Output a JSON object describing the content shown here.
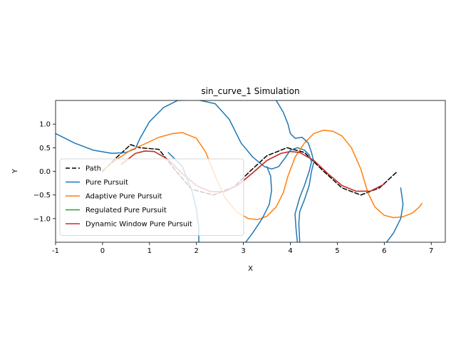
{
  "chart_data": {
    "type": "line",
    "title": "sin_curve_1 Simulation",
    "xlabel": "X",
    "ylabel": "Y",
    "xlim": [
      -1,
      7.3
    ],
    "ylim": [
      -1.5,
      1.5
    ],
    "xticks": [
      "-1",
      "0",
      "1",
      "2",
      "3",
      "4",
      "5",
      "6",
      "7"
    ],
    "yticks": [
      "-1.0",
      "-0.5",
      "0.0",
      "0.5",
      "1.0"
    ],
    "grid": false,
    "legend_position": "lower-left",
    "series": [
      {
        "name": "Path",
        "color": "#000000",
        "dash": "dashed",
        "points": [
          [
            0,
            0
          ],
          [
            0.3,
            0.296
          ],
          [
            0.6,
            0.565
          ],
          [
            0.785,
            0.5
          ],
          [
            1.2,
            0.466
          ],
          [
            1.57,
            0
          ],
          [
            1.9,
            -0.38
          ],
          [
            2.36,
            -0.5
          ],
          [
            2.8,
            -0.33
          ],
          [
            3.14,
            0
          ],
          [
            3.5,
            0.33
          ],
          [
            3.93,
            0.5
          ],
          [
            4.3,
            0.4
          ],
          [
            4.71,
            0
          ],
          [
            5.1,
            -0.35
          ],
          [
            5.5,
            -0.5
          ],
          [
            5.9,
            -0.35
          ],
          [
            6.28,
            0
          ]
        ]
      },
      {
        "name": "Pure Pursuit",
        "color": "#1f77b4",
        "dash": "solid",
        "points": [
          [
            -1,
            0.8
          ],
          [
            -0.6,
            0.6
          ],
          [
            -0.2,
            0.45
          ],
          [
            0.2,
            0.38
          ],
          [
            0.5,
            0.4
          ],
          [
            0.7,
            0.48
          ],
          [
            0.8,
            0.7
          ],
          [
            1.0,
            1.05
          ],
          [
            1.3,
            1.35
          ],
          [
            1.6,
            1.5
          ],
          [
            2.0,
            1.52
          ],
          [
            2.4,
            1.43
          ],
          [
            2.7,
            1.1
          ],
          [
            2.95,
            0.6
          ],
          [
            3.2,
            0.3
          ],
          [
            3.45,
            0.1
          ],
          [
            3.6,
            0.05
          ],
          [
            3.75,
            0.1
          ],
          [
            3.9,
            0.3
          ],
          [
            4.0,
            0.45
          ],
          [
            4.15,
            0.5
          ],
          [
            4.3,
            0.45
          ],
          [
            4.4,
            0.35
          ],
          [
            4.45,
            0.2
          ],
          [
            4.4,
            0
          ],
          [
            4.3,
            -0.3
          ],
          [
            4.2,
            -0.55
          ],
          [
            4.1,
            -0.9
          ],
          [
            4.12,
            -1.2
          ],
          [
            4.15,
            -1.5
          ]
        ]
      },
      {
        "name": "Adaptive Pure Pursuit",
        "color": "#ff7f0e",
        "dash": "solid",
        "points": [
          [
            0,
            0.02
          ],
          [
            0.3,
            0.25
          ],
          [
            0.6,
            0.45
          ],
          [
            0.9,
            0.58
          ],
          [
            1.2,
            0.72
          ],
          [
            1.5,
            0.8
          ],
          [
            1.7,
            0.82
          ],
          [
            2.0,
            0.7
          ],
          [
            2.2,
            0.4
          ],
          [
            2.4,
            -0.1
          ],
          [
            2.6,
            -0.55
          ],
          [
            2.85,
            -0.85
          ],
          [
            3.1,
            -1.0
          ],
          [
            3.3,
            -1.02
          ],
          [
            3.5,
            -0.95
          ],
          [
            3.7,
            -0.75
          ],
          [
            3.85,
            -0.45
          ],
          [
            3.95,
            -0.1
          ],
          [
            4.1,
            0.3
          ],
          [
            4.3,
            0.6
          ],
          [
            4.5,
            0.8
          ],
          [
            4.7,
            0.87
          ],
          [
            4.9,
            0.85
          ],
          [
            5.1,
            0.75
          ],
          [
            5.3,
            0.5
          ],
          [
            5.5,
            0.05
          ],
          [
            5.65,
            -0.45
          ],
          [
            5.8,
            -0.75
          ],
          [
            6.0,
            -0.93
          ],
          [
            6.2,
            -0.98
          ],
          [
            6.4,
            -0.96
          ],
          [
            6.6,
            -0.88
          ],
          [
            6.75,
            -0.75
          ],
          [
            6.8,
            -0.68
          ]
        ]
      },
      {
        "name": "Regulated Pure Pursuit",
        "color": "#2ca02c",
        "dash": "solid",
        "points": [
          [
            0.4,
            0.15
          ],
          [
            0.7,
            0.38
          ],
          [
            0.9,
            0.43
          ],
          [
            1.1,
            0.42
          ],
          [
            1.4,
            0.25
          ],
          [
            1.7,
            -0.05
          ],
          [
            2.0,
            -0.3
          ],
          [
            2.3,
            -0.43
          ],
          [
            2.6,
            -0.43
          ],
          [
            2.9,
            -0.28
          ],
          [
            3.2,
            -0.03
          ],
          [
            3.5,
            0.23
          ],
          [
            3.8,
            0.38
          ],
          [
            4.0,
            0.42
          ],
          [
            4.2,
            0.4
          ],
          [
            4.5,
            0.23
          ],
          [
            4.8,
            -0.05
          ],
          [
            5.1,
            -0.3
          ],
          [
            5.4,
            -0.42
          ],
          [
            5.7,
            -0.42
          ],
          [
            6.0,
            -0.27
          ]
        ]
      },
      {
        "name": "Dynamic Window Pure Pursuit",
        "color": "#d62728",
        "dash": "solid",
        "points": [
          [
            0.4,
            0.15
          ],
          [
            0.7,
            0.38
          ],
          [
            0.9,
            0.43
          ],
          [
            1.1,
            0.42
          ],
          [
            1.4,
            0.25
          ],
          [
            1.7,
            -0.05
          ],
          [
            2.0,
            -0.3
          ],
          [
            2.3,
            -0.43
          ],
          [
            2.6,
            -0.43
          ],
          [
            2.9,
            -0.28
          ],
          [
            3.2,
            -0.03
          ],
          [
            3.5,
            0.23
          ],
          [
            3.8,
            0.38
          ],
          [
            4.0,
            0.42
          ],
          [
            4.2,
            0.4
          ],
          [
            4.5,
            0.23
          ],
          [
            4.8,
            -0.05
          ],
          [
            5.1,
            -0.3
          ],
          [
            5.4,
            -0.42
          ],
          [
            5.7,
            -0.42
          ],
          [
            6.0,
            -0.27
          ]
        ]
      }
    ],
    "extra_segments": [
      {
        "series": "Pure Pursuit",
        "color": "#1f77b4",
        "points": [
          [
            3.7,
            1.5
          ],
          [
            3.85,
            1.25
          ],
          [
            3.95,
            1.0
          ],
          [
            4.0,
            0.8
          ],
          [
            4.1,
            0.7
          ],
          [
            4.25,
            0.72
          ],
          [
            4.38,
            0.6
          ],
          [
            4.45,
            0.4
          ],
          [
            4.5,
            0.2
          ],
          [
            4.45,
            0.0
          ],
          [
            4.4,
            -0.3
          ],
          [
            4.3,
            -0.6
          ],
          [
            4.2,
            -0.85
          ],
          [
            4.18,
            -1.1
          ],
          [
            4.2,
            -1.5
          ]
        ]
      },
      {
        "series": "Pure Pursuit",
        "color": "#1f77b4",
        "points": [
          [
            3.05,
            -1.5
          ],
          [
            3.2,
            -1.3
          ],
          [
            3.4,
            -1.0
          ],
          [
            3.55,
            -0.7
          ],
          [
            3.6,
            -0.4
          ],
          [
            3.58,
            -0.1
          ],
          [
            3.5,
            0.1
          ]
        ]
      },
      {
        "series": "Pure Pursuit",
        "color": "#1f77b4",
        "points": [
          [
            6.35,
            -0.35
          ],
          [
            6.4,
            -0.7
          ],
          [
            6.35,
            -1.0
          ],
          [
            6.2,
            -1.3
          ],
          [
            6.05,
            -1.5
          ]
        ]
      },
      {
        "series": "Pure Pursuit",
        "color": "#1f77b4",
        "points": [
          [
            1.4,
            0.4
          ],
          [
            1.7,
            0.1
          ],
          [
            1.9,
            -0.4
          ],
          [
            2.0,
            -0.8
          ],
          [
            2.05,
            -1.2
          ],
          [
            2.05,
            -1.5
          ]
        ]
      }
    ]
  }
}
